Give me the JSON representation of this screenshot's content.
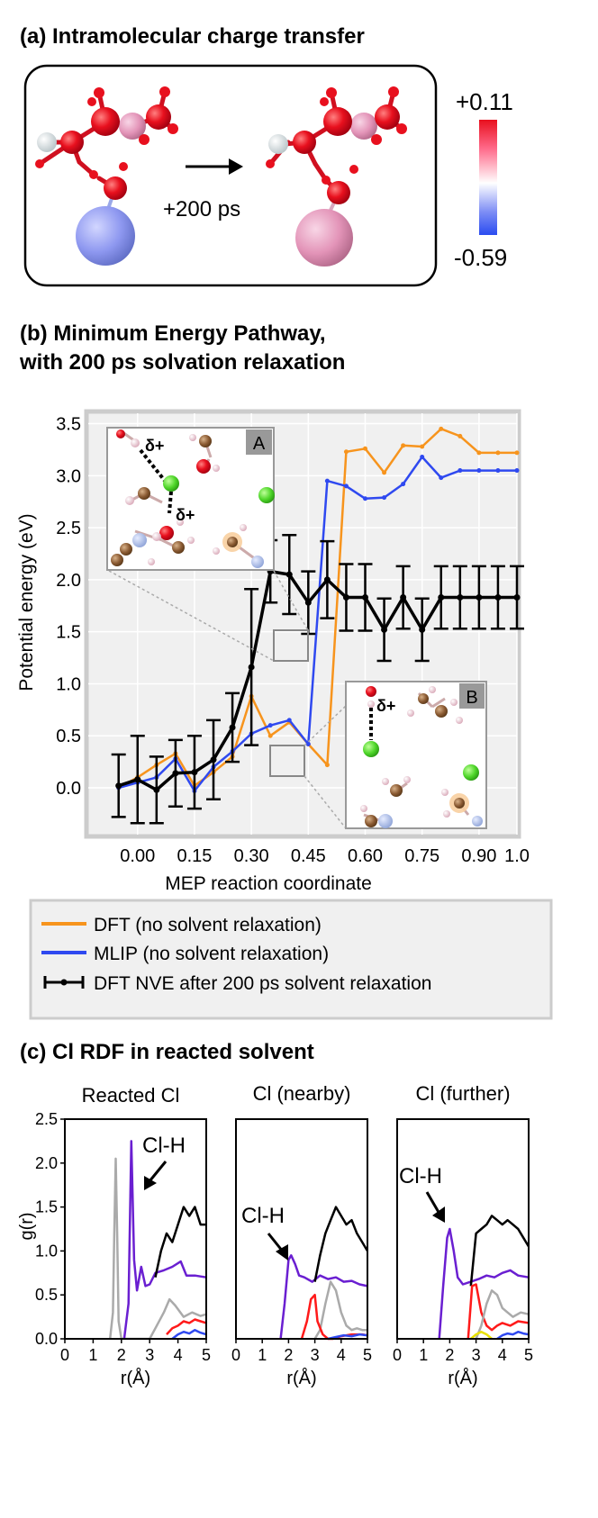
{
  "panel_a": {
    "title": "(a) Intramolecular charge transfer",
    "arrow_label": "+200 ps",
    "colorbar": {
      "max_label": "+0.11",
      "min_label": "-0.59",
      "colors": [
        "#e8101e",
        "#ffffff",
        "#2a4cf0"
      ]
    }
  },
  "panel_b": {
    "title_line1": "(b) Minimum Energy Pathway,",
    "title_line2": "with 200 ps solvation relaxation",
    "inset_a": {
      "label": "A",
      "delta1": "δ+",
      "delta2": "δ+"
    },
    "inset_b": {
      "label": "B",
      "delta1": "δ+"
    },
    "legend": {
      "dft": "DFT (no solvent relaxation)",
      "mlip": "MLIP (no solvent relaxation)",
      "nve": "DFT NVE after 200 ps solvent relaxation"
    }
  },
  "panel_c": {
    "title": "(c) Cl RDF in reacted solvent",
    "subtitles": [
      "Reacted Cl",
      "Cl (nearby)",
      "Cl (further)"
    ],
    "annotation": "Cl-H"
  },
  "chart_data": [
    {
      "type": "line",
      "title": "Minimum Energy Pathway, with 200 ps solvation relaxation",
      "xlabel": "MEP reaction coordinate",
      "ylabel": "Potential energy (eV)",
      "xlim": [
        -0.13,
        1.0
      ],
      "ylim": [
        -0.45,
        3.6
      ],
      "xticks": [
        0.0,
        0.15,
        0.3,
        0.45,
        0.6,
        0.75,
        0.9,
        1.0
      ],
      "xtick_labels": [
        "0.00",
        "0.15",
        "0.30",
        "0.45",
        "0.60",
        "0.75",
        "0.90",
        "1.0"
      ],
      "yticks": [
        0.0,
        0.5,
        1.0,
        1.5,
        2.0,
        2.5,
        3.0,
        3.5
      ],
      "ytick_labels": [
        "0.0",
        "0.5",
        "1.0",
        "1.5",
        "2.0",
        "2.5",
        "3.0",
        "3.5"
      ],
      "series": [
        {
          "name": "DFT (no solvent relaxation)",
          "color": "#f7941d",
          "x": [
            -0.05,
            0.0,
            0.05,
            0.1,
            0.15,
            0.2,
            0.25,
            0.3,
            0.35,
            0.4,
            0.45,
            0.5,
            0.55,
            0.6,
            0.65,
            0.7,
            0.75,
            0.8,
            0.85,
            0.9,
            0.95,
            1.0
          ],
          "y": [
            0.0,
            0.1,
            0.22,
            0.33,
            0.02,
            0.15,
            0.3,
            0.88,
            0.5,
            0.63,
            0.42,
            0.22,
            3.23,
            3.26,
            3.03,
            3.29,
            3.28,
            3.45,
            3.38,
            3.22,
            3.22,
            3.22
          ]
        },
        {
          "name": "MLIP (no solvent relaxation)",
          "color": "#2f49f0",
          "x": [
            -0.05,
            0.0,
            0.05,
            0.1,
            0.15,
            0.2,
            0.25,
            0.3,
            0.35,
            0.4,
            0.45,
            0.5,
            0.55,
            0.6,
            0.65,
            0.7,
            0.75,
            0.8,
            0.85,
            0.9,
            0.95,
            1.0
          ],
          "y": [
            0.0,
            0.05,
            0.1,
            0.28,
            -0.03,
            0.2,
            0.35,
            0.52,
            0.6,
            0.65,
            0.42,
            2.95,
            2.9,
            2.78,
            2.79,
            2.92,
            3.18,
            2.98,
            3.05,
            3.05,
            3.05,
            3.05
          ]
        },
        {
          "name": "DFT NVE after 200 ps solvent relaxation",
          "color": "#000000",
          "x": [
            -0.05,
            0.0,
            0.05,
            0.1,
            0.15,
            0.2,
            0.25,
            0.3,
            0.35,
            0.4,
            0.45,
            0.5,
            0.55,
            0.6,
            0.65,
            0.7,
            0.75,
            0.8,
            0.85,
            0.9,
            0.95,
            1.0
          ],
          "y": [
            0.02,
            0.08,
            -0.02,
            0.14,
            0.15,
            0.27,
            0.58,
            1.16,
            2.08,
            2.05,
            1.78,
            2.0,
            1.83,
            1.83,
            1.52,
            1.83,
            1.52,
            1.83,
            1.83,
            1.83,
            1.83,
            1.83
          ],
          "yerr": [
            0.3,
            0.42,
            0.32,
            0.32,
            0.35,
            0.38,
            0.33,
            0.75,
            0.3,
            0.38,
            0.3,
            0.37,
            0.32,
            0.32,
            0.3,
            0.3,
            0.3,
            0.3,
            0.3,
            0.3,
            0.3,
            0.3
          ]
        }
      ]
    },
    {
      "type": "line",
      "title": "Reacted Cl",
      "xlabel": "r(Å)",
      "ylabel": "g(r)",
      "xlim": [
        0,
        5
      ],
      "ylim": [
        0,
        2.5
      ],
      "xticks": [
        0,
        1,
        2,
        3,
        4,
        5
      ],
      "yticks": [
        0.0,
        0.5,
        1.0,
        1.5,
        2.0,
        2.5
      ],
      "ytick_labels": [
        "0.0",
        "0.5",
        "1.0",
        "1.5",
        "2.0",
        "2.5"
      ],
      "series": [
        {
          "name": "grey",
          "color": "#aaaaaa",
          "x": [
            1.6,
            1.7,
            1.75,
            1.8,
            1.85,
            1.9,
            2.0,
            3.0,
            3.2,
            3.5,
            3.7,
            3.9,
            4.2,
            4.5,
            4.8,
            5.0
          ],
          "y": [
            0.0,
            0.3,
            1.2,
            2.05,
            1.2,
            0.2,
            0.0,
            0.0,
            0.12,
            0.3,
            0.45,
            0.38,
            0.25,
            0.3,
            0.26,
            0.28
          ]
        },
        {
          "name": "purple",
          "color": "#6a1fd1",
          "x": [
            2.1,
            2.25,
            2.35,
            2.45,
            2.55,
            2.7,
            2.85,
            3.0,
            3.2,
            3.5,
            3.8,
            4.1,
            4.3,
            4.6,
            5.0
          ],
          "y": [
            0.0,
            0.4,
            2.25,
            0.9,
            0.55,
            0.82,
            0.6,
            0.62,
            0.75,
            0.78,
            0.82,
            0.88,
            0.72,
            0.72,
            0.7
          ]
        },
        {
          "name": "black",
          "color": "#000000",
          "x": [
            3.2,
            3.4,
            3.6,
            3.8,
            4.0,
            4.2,
            4.4,
            4.6,
            4.8,
            5.0
          ],
          "y": [
            0.7,
            1.0,
            1.2,
            1.1,
            1.3,
            1.5,
            1.4,
            1.5,
            1.3,
            1.3
          ]
        },
        {
          "name": "red",
          "color": "#ff1a1a",
          "x": [
            3.6,
            3.8,
            4.0,
            4.2,
            4.4,
            4.6,
            4.8,
            5.0
          ],
          "y": [
            0.05,
            0.12,
            0.15,
            0.2,
            0.18,
            0.22,
            0.2,
            0.18
          ]
        },
        {
          "name": "blue",
          "color": "#2f49f0",
          "x": [
            3.8,
            4.0,
            4.2,
            4.4,
            4.6,
            4.8,
            5.0
          ],
          "y": [
            0.0,
            0.05,
            0.08,
            0.06,
            0.1,
            0.07,
            0.05
          ]
        }
      ]
    },
    {
      "type": "line",
      "title": "Cl (nearby)",
      "xlabel": "r(Å)",
      "ylabel": "",
      "xlim": [
        0,
        5
      ],
      "ylim": [
        0,
        2.5
      ],
      "xticks": [
        0,
        1,
        2,
        3,
        4,
        5
      ],
      "series": [
        {
          "name": "purple",
          "color": "#6a1fd1",
          "x": [
            1.7,
            1.85,
            2.0,
            2.1,
            2.25,
            2.4,
            2.6,
            2.9,
            3.2,
            3.5,
            3.8,
            4.1,
            4.4,
            4.7,
            5.0
          ],
          "y": [
            0.0,
            0.4,
            0.9,
            0.95,
            0.85,
            0.72,
            0.7,
            0.65,
            0.72,
            0.68,
            0.7,
            0.65,
            0.66,
            0.62,
            0.6
          ]
        },
        {
          "name": "black",
          "color": "#000000",
          "x": [
            3.0,
            3.2,
            3.4,
            3.6,
            3.8,
            4.0,
            4.2,
            4.4,
            4.6,
            4.8,
            5.0
          ],
          "y": [
            0.65,
            0.95,
            1.2,
            1.35,
            1.5,
            1.4,
            1.3,
            1.35,
            1.2,
            1.1,
            1.0
          ]
        },
        {
          "name": "grey",
          "color": "#aaaaaa",
          "x": [
            3.0,
            3.2,
            3.4,
            3.6,
            3.8,
            4.0,
            4.2,
            4.4,
            4.6,
            4.8,
            5.0
          ],
          "y": [
            0.0,
            0.1,
            0.4,
            0.65,
            0.55,
            0.3,
            0.15,
            0.1,
            0.12,
            0.1,
            0.1
          ]
        },
        {
          "name": "red",
          "color": "#ff1a1a",
          "x": [
            2.5,
            2.7,
            2.85,
            3.0,
            3.1,
            3.3,
            3.5,
            3.7,
            4.0,
            4.4,
            4.8,
            5.0
          ],
          "y": [
            0.0,
            0.2,
            0.45,
            0.5,
            0.2,
            0.05,
            0.0,
            0.0,
            0.03,
            0.05,
            0.05,
            0.04
          ]
        },
        {
          "name": "blue",
          "color": "#2f49f0",
          "x": [
            3.5,
            3.8,
            4.1,
            4.4,
            4.7,
            5.0
          ],
          "y": [
            0.0,
            0.02,
            0.04,
            0.03,
            0.05,
            0.04
          ]
        }
      ]
    },
    {
      "type": "line",
      "title": "Cl (further)",
      "xlabel": "r(Å)",
      "ylabel": "",
      "xlim": [
        0,
        5
      ],
      "ylim": [
        0,
        2.5
      ],
      "xticks": [
        0,
        1,
        2,
        3,
        4,
        5
      ],
      "series": [
        {
          "name": "purple",
          "color": "#6a1fd1",
          "x": [
            1.6,
            1.75,
            1.9,
            2.0,
            2.15,
            2.3,
            2.5,
            2.8,
            3.1,
            3.4,
            3.7,
            4.0,
            4.3,
            4.6,
            5.0
          ],
          "y": [
            0.0,
            0.6,
            1.15,
            1.25,
            1.0,
            0.7,
            0.62,
            0.65,
            0.68,
            0.72,
            0.7,
            0.75,
            0.78,
            0.72,
            0.7
          ]
        },
        {
          "name": "black",
          "color": "#000000",
          "x": [
            2.8,
            3.0,
            3.2,
            3.4,
            3.6,
            3.8,
            4.0,
            4.2,
            4.4,
            4.6,
            4.8,
            5.0
          ],
          "y": [
            0.6,
            1.2,
            1.25,
            1.3,
            1.4,
            1.35,
            1.3,
            1.35,
            1.3,
            1.25,
            1.15,
            1.05
          ]
        },
        {
          "name": "red",
          "color": "#ff1a1a",
          "x": [
            2.7,
            2.85,
            3.0,
            3.2,
            3.4,
            3.6,
            3.8,
            4.0,
            4.3,
            4.6,
            5.0
          ],
          "y": [
            0.0,
            0.6,
            0.62,
            0.3,
            0.15,
            0.1,
            0.15,
            0.18,
            0.15,
            0.2,
            0.18
          ]
        },
        {
          "name": "grey",
          "color": "#aaaaaa",
          "x": [
            3.0,
            3.2,
            3.4,
            3.6,
            3.8,
            4.0,
            4.2,
            4.4,
            4.7,
            5.0
          ],
          "y": [
            0.0,
            0.15,
            0.4,
            0.55,
            0.5,
            0.35,
            0.3,
            0.25,
            0.3,
            0.28
          ]
        },
        {
          "name": "yellow",
          "color": "#e8e100",
          "x": [
            2.8,
            3.0,
            3.2,
            3.4,
            3.6
          ],
          "y": [
            0.0,
            0.05,
            0.08,
            0.05,
            0.0
          ]
        },
        {
          "name": "blue",
          "color": "#2f49f0",
          "x": [
            3.8,
            4.0,
            4.2,
            4.4,
            4.6,
            4.8,
            5.0
          ],
          "y": [
            0.0,
            0.04,
            0.06,
            0.05,
            0.08,
            0.06,
            0.05
          ]
        }
      ]
    }
  ]
}
